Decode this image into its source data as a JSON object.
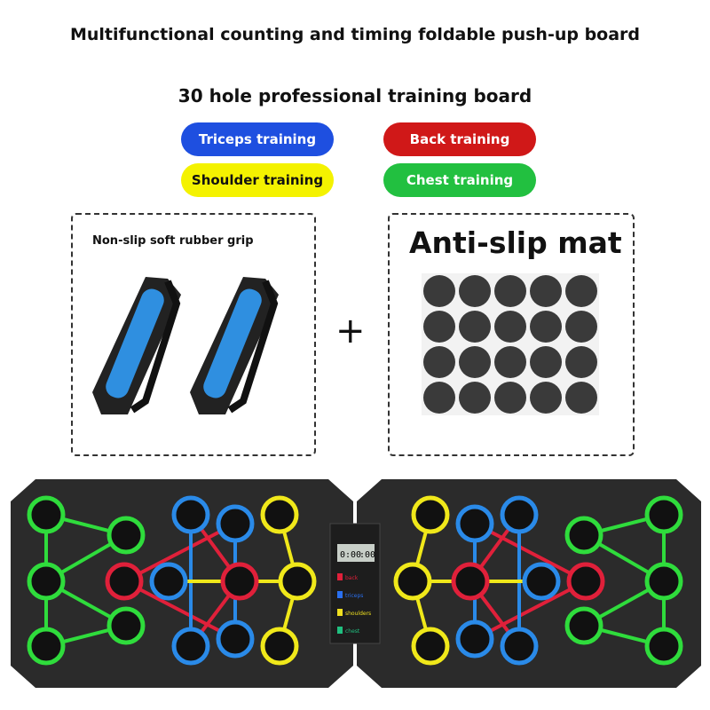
{
  "title": "Multifunctional counting and timing foldable push-up board",
  "subtitle": "30 hole professional training board",
  "tags": [
    {
      "label": "Triceps training",
      "color": "#1e4fe0",
      "text": "#ffffff"
    },
    {
      "label": "Back training",
      "color": "#d01818",
      "text": "#ffffff"
    },
    {
      "label": "Shoulder training",
      "color": "#f4f200",
      "text": "#111111"
    },
    {
      "label": "Chest training",
      "color": "#22c040",
      "text": "#ffffff"
    }
  ],
  "grip": {
    "label": "Non-slip soft rubber grip",
    "handle_color": "#2f8fe0"
  },
  "mat": {
    "label": "Anti-slip mat",
    "count": 20
  },
  "plus": "+",
  "counter": {
    "time": "0:00",
    "secs": ":00",
    "legend": [
      "back",
      "triceps",
      "shoulders",
      "chest"
    ],
    "legend_colors": [
      "#e0203a",
      "#2a70f0",
      "#f0e020",
      "#20c080"
    ]
  }
}
